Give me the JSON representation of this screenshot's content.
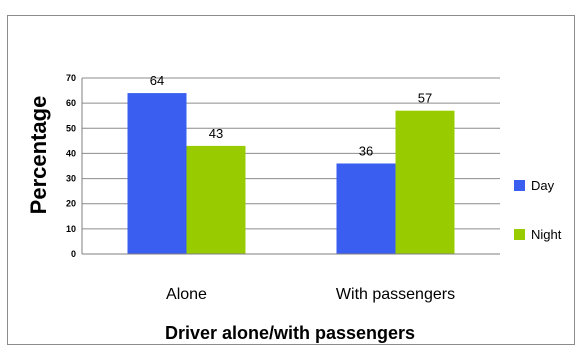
{
  "chart_data": {
    "type": "bar",
    "xlabel": "Driver alone/with passengers",
    "ylabel": "Percentage",
    "categories": [
      "Alone",
      "With passengers"
    ],
    "series": [
      {
        "name": "Day",
        "values": [
          64,
          36
        ],
        "color": "#3a5ef0"
      },
      {
        "name": "Night",
        "values": [
          43,
          57
        ],
        "color": "#99cc00"
      }
    ],
    "ylim": [
      0,
      70
    ],
    "yticks": [
      "0",
      "10",
      "20",
      "30",
      "40",
      "50",
      "60",
      "70"
    ],
    "data_labels": [
      [
        "64",
        "36"
      ],
      [
        "43",
        "57"
      ]
    ],
    "grid": true,
    "legend": "right"
  }
}
